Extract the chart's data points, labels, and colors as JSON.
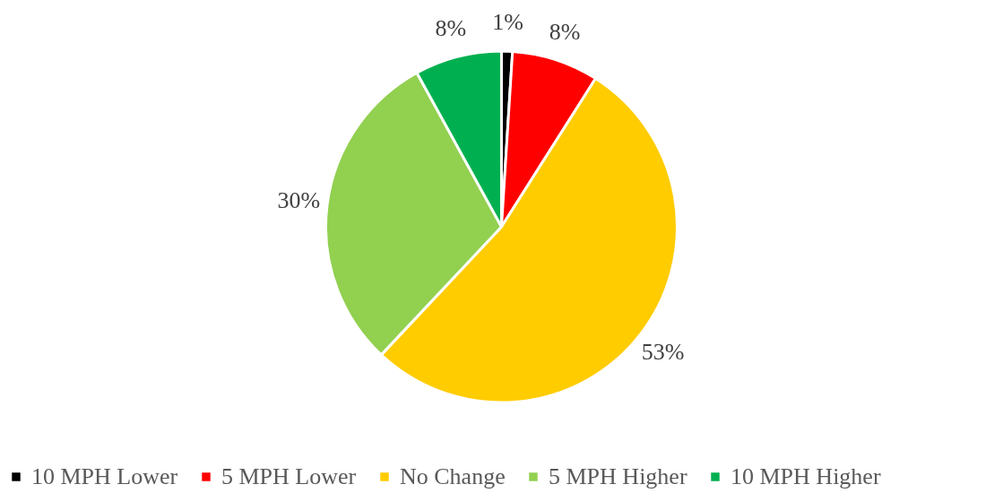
{
  "chart_data": {
    "type": "pie",
    "categories": [
      "10 MPH Lower",
      "5 MPH Lower",
      "No Change",
      "5 MPH Higher",
      "10 MPH Higher"
    ],
    "values": [
      1,
      8,
      53,
      30,
      8
    ],
    "colors": [
      "#000000",
      "#ff0000",
      "#ffcc00",
      "#92d050",
      "#00b050"
    ],
    "value_labels": [
      "1%",
      "8%",
      "53%",
      "30%",
      "8%"
    ],
    "legend": "bottom"
  }
}
